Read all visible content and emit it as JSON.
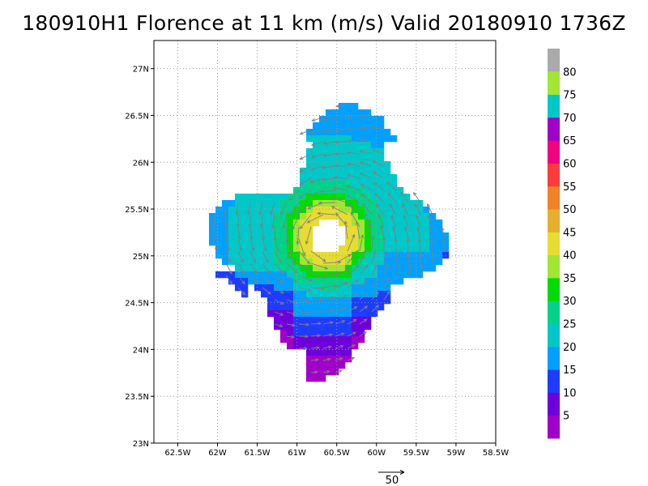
{
  "title": "180910H1 Florence at 11 km (m/s) Valid 20180910 1736Z",
  "map": {
    "lon_range": [
      -62.8,
      -58.5
    ],
    "lat_range": [
      23.0,
      27.3
    ],
    "lon_ticks": [
      {
        "value": -62.5,
        "label": "62.5W"
      },
      {
        "value": -62.0,
        "label": "62W"
      },
      {
        "value": -61.5,
        "label": "61.5W"
      },
      {
        "value": -61.0,
        "label": "61W"
      },
      {
        "value": -60.5,
        "label": "60.5W"
      },
      {
        "value": -60.0,
        "label": "60W"
      },
      {
        "value": -59.5,
        "label": "59.5W"
      },
      {
        "value": -59.0,
        "label": "59W"
      },
      {
        "value": -58.5,
        "label": "58.5W"
      }
    ],
    "lat_ticks": [
      {
        "value": 23.0,
        "label": "23N"
      },
      {
        "value": 23.5,
        "label": "23.5N"
      },
      {
        "value": 24.0,
        "label": "24N"
      },
      {
        "value": 24.5,
        "label": "24.5N"
      },
      {
        "value": 25.0,
        "label": "25N"
      },
      {
        "value": 25.5,
        "label": "25.5N"
      },
      {
        "value": 26.0,
        "label": "26N"
      },
      {
        "value": 26.5,
        "label": "26.5N"
      },
      {
        "value": 27.0,
        "label": "27N"
      }
    ],
    "grid": "dotted"
  },
  "colorbar": {
    "levels": [
      {
        "label": "5",
        "color": "#a000c8"
      },
      {
        "label": "10",
        "color": "#6e00dc"
      },
      {
        "label": "15",
        "color": "#1e3cff"
      },
      {
        "label": "20",
        "color": "#00a0ff"
      },
      {
        "label": "25",
        "color": "#00c8c8"
      },
      {
        "label": "30",
        "color": "#00d28c"
      },
      {
        "label": "35",
        "color": "#00dc00"
      },
      {
        "label": "40",
        "color": "#a0e632"
      },
      {
        "label": "45",
        "color": "#e6dc32"
      },
      {
        "label": "50",
        "color": "#e6af2d"
      },
      {
        "label": "55",
        "color": "#f08228"
      },
      {
        "label": "60",
        "color": "#fa3c3c"
      },
      {
        "label": "65",
        "color": "#f00082"
      },
      {
        "label": "70",
        "color": "#a000c8"
      },
      {
        "label": "75",
        "color": "#00c8c8"
      },
      {
        "label": "80",
        "color": "#a0e632"
      }
    ],
    "top_color": "#aaaaaa"
  },
  "reference_vector": {
    "label": "50"
  }
}
